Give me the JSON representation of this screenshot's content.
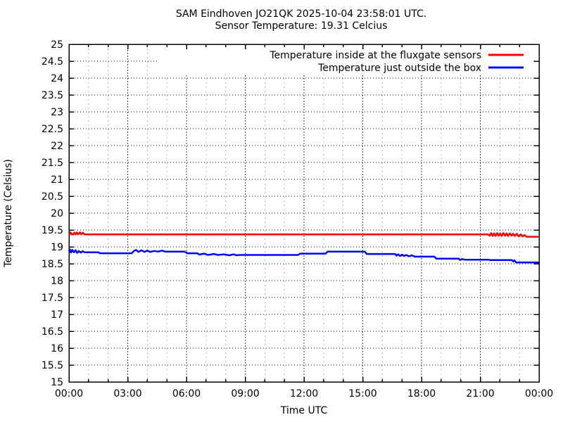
{
  "window": {
    "background": "#ffffff",
    "foreground": "#000000"
  },
  "title": {
    "line1": "SAM Eindhoven JO21QK 2025-10-04 23:58:01 UTC.",
    "line2": "Sensor Temperature: 19.31 Celcius"
  },
  "chart_data": {
    "type": "line",
    "title": "SAM Eindhoven JO21QK 2025-10-04 23:58:01 UTC.",
    "subtitle": "Sensor Temperature: 19.31 Celcius",
    "xlabel": "Time UTC",
    "ylabel": "Temperature (Celsius)",
    "x_unit": "hours",
    "xlim": [
      0,
      24
    ],
    "ylim": [
      15,
      25
    ],
    "y_tick_step": 0.5,
    "x_major_tick_step_hours": 3,
    "x_minor_tick_step_hours": 1,
    "grid": true,
    "legend_position": "top-right-inside-opaque",
    "x_tick_labels": [
      "00:00",
      "03:00",
      "06:00",
      "09:00",
      "12:00",
      "15:00",
      "18:00",
      "21:00",
      "00:00"
    ],
    "y_tick_labels": [
      "15",
      "15.5",
      "16",
      "16.5",
      "17",
      "17.5",
      "18",
      "18.5",
      "19",
      "19.5",
      "20",
      "20.5",
      "21",
      "21.5",
      "22",
      "22.5",
      "23",
      "23.5",
      "24",
      "24.5",
      "25"
    ],
    "colors": {
      "series_inside": "#ff0000",
      "series_outside": "#0000ff",
      "grid_horizontal": "#000000",
      "grid_vertical_major": "#444444",
      "grid_vertical_minor": "#b4b4b4",
      "border": "#000000"
    },
    "series": [
      {
        "name": "Temperature inside at the fluxgate sensors",
        "key": "inside",
        "color": "#ff0000",
        "points": [
          [
            0.0,
            19.4
          ],
          [
            0.04,
            19.37
          ],
          [
            0.09,
            19.43
          ],
          [
            0.14,
            19.37
          ],
          [
            0.22,
            19.37
          ],
          [
            0.27,
            19.42
          ],
          [
            0.33,
            19.37
          ],
          [
            0.4,
            19.43
          ],
          [
            0.46,
            19.37
          ],
          [
            0.56,
            19.43
          ],
          [
            0.62,
            19.37
          ],
          [
            0.72,
            19.42
          ],
          [
            0.78,
            19.37
          ],
          [
            21.4,
            19.37
          ],
          [
            21.48,
            19.33
          ],
          [
            21.55,
            19.41
          ],
          [
            21.63,
            19.32
          ],
          [
            21.7,
            19.4
          ],
          [
            21.78,
            19.32
          ],
          [
            21.86,
            19.41
          ],
          [
            21.93,
            19.33
          ],
          [
            22.01,
            19.4
          ],
          [
            22.09,
            19.32
          ],
          [
            22.17,
            19.41
          ],
          [
            22.26,
            19.33
          ],
          [
            22.34,
            19.4
          ],
          [
            22.42,
            19.32
          ],
          [
            22.51,
            19.4
          ],
          [
            22.59,
            19.33
          ],
          [
            22.67,
            19.39
          ],
          [
            22.76,
            19.32
          ],
          [
            22.86,
            19.39
          ],
          [
            22.96,
            19.31
          ],
          [
            23.06,
            19.37
          ],
          [
            23.16,
            19.31
          ],
          [
            23.26,
            19.35
          ],
          [
            23.36,
            19.3
          ],
          [
            24.0,
            19.3
          ]
        ]
      },
      {
        "name": "Temperature just outside the box",
        "key": "outside",
        "color": "#0000ff",
        "points": [
          [
            0.0,
            18.86
          ],
          [
            0.04,
            18.93
          ],
          [
            0.1,
            18.83
          ],
          [
            0.17,
            18.91
          ],
          [
            0.25,
            18.84
          ],
          [
            0.33,
            18.9
          ],
          [
            0.42,
            18.82
          ],
          [
            0.5,
            18.88
          ],
          [
            0.6,
            18.83
          ],
          [
            0.7,
            18.87
          ],
          [
            0.8,
            18.84
          ],
          [
            1.5,
            18.84
          ],
          [
            1.58,
            18.81
          ],
          [
            3.2,
            18.81
          ],
          [
            3.3,
            18.87
          ],
          [
            3.42,
            18.91
          ],
          [
            3.55,
            18.85
          ],
          [
            3.7,
            18.9
          ],
          [
            3.85,
            18.85
          ],
          [
            4.0,
            18.89
          ],
          [
            4.15,
            18.85
          ],
          [
            4.35,
            18.88
          ],
          [
            4.55,
            18.86
          ],
          [
            4.75,
            18.89
          ],
          [
            4.9,
            18.86
          ],
          [
            5.9,
            18.86
          ],
          [
            6.05,
            18.81
          ],
          [
            6.55,
            18.81
          ],
          [
            6.65,
            18.77
          ],
          [
            6.9,
            18.8
          ],
          [
            7.1,
            18.76
          ],
          [
            7.4,
            18.79
          ],
          [
            7.6,
            18.76
          ],
          [
            7.9,
            18.78
          ],
          [
            8.2,
            18.75
          ],
          [
            8.4,
            18.78
          ],
          [
            8.55,
            18.75
          ],
          [
            8.7,
            18.76
          ],
          [
            11.7,
            18.76
          ],
          [
            11.8,
            18.8
          ],
          [
            13.1,
            18.8
          ],
          [
            13.2,
            18.86
          ],
          [
            15.1,
            18.86
          ],
          [
            15.2,
            18.79
          ],
          [
            16.65,
            18.79
          ],
          [
            16.72,
            18.74
          ],
          [
            16.8,
            18.78
          ],
          [
            16.9,
            18.73
          ],
          [
            17.0,
            18.77
          ],
          [
            17.1,
            18.73
          ],
          [
            17.22,
            18.76
          ],
          [
            17.35,
            18.72
          ],
          [
            17.5,
            18.75
          ],
          [
            17.65,
            18.71
          ],
          [
            18.65,
            18.71
          ],
          [
            18.75,
            18.65
          ],
          [
            19.9,
            18.65
          ],
          [
            19.97,
            18.61
          ],
          [
            20.07,
            18.64
          ],
          [
            20.2,
            18.62
          ],
          [
            21.4,
            18.62
          ],
          [
            21.5,
            18.61
          ],
          [
            22.6,
            18.61
          ],
          [
            22.67,
            18.57
          ],
          [
            22.74,
            18.6
          ],
          [
            22.82,
            18.54
          ],
          [
            24.0,
            18.54
          ]
        ]
      }
    ]
  }
}
